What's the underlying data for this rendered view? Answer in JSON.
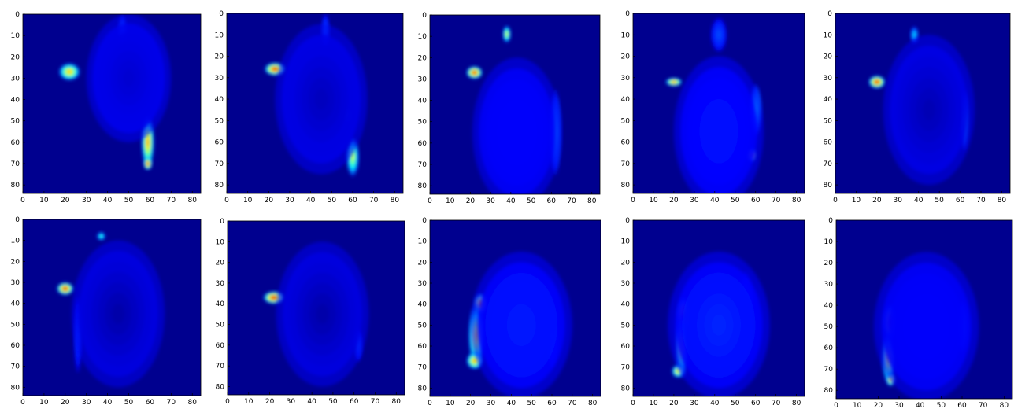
{
  "figure": {
    "colormap": "jet",
    "background": "#00008f",
    "panel_count": 10,
    "rows": 2,
    "cols": 5
  },
  "axes": {
    "x_ticks": [
      "0",
      "10",
      "20",
      "30",
      "40",
      "50",
      "60",
      "70",
      "80"
    ],
    "y_ticks": [
      "0",
      "10",
      "20",
      "30",
      "40",
      "50",
      "60",
      "70",
      "80"
    ],
    "xlim": [
      0,
      84
    ],
    "ylim": [
      84,
      0
    ]
  },
  "panels": [
    {
      "id": "p1",
      "blobs": [
        {
          "x": 22,
          "y": 27,
          "rx": 5,
          "ry": 4,
          "v": 0.72
        },
        {
          "x": 59,
          "y": 60,
          "rx": 3,
          "ry": 12,
          "v": 0.75
        },
        {
          "x": 59,
          "y": 70,
          "rx": 2,
          "ry": 3,
          "v": 0.9
        },
        {
          "x": 47,
          "y": 8,
          "rx": 2,
          "ry": 8,
          "v": 0.25
        },
        {
          "x": 50,
          "y": 30,
          "rx": 20,
          "ry": 30,
          "v": 0.08
        }
      ]
    },
    {
      "id": "p2",
      "blobs": [
        {
          "x": 23,
          "y": 26,
          "rx": 5,
          "ry": 3,
          "v": 0.92
        },
        {
          "x": 57,
          "y": 47,
          "rx": 2,
          "ry": 4,
          "v": 0.55
        },
        {
          "x": 60,
          "y": 67,
          "rx": 3,
          "ry": 9,
          "v": 0.6
        },
        {
          "x": 47,
          "y": 8,
          "rx": 2,
          "ry": 8,
          "v": 0.2
        },
        {
          "x": 45,
          "y": 40,
          "rx": 22,
          "ry": 35,
          "v": 0.06
        }
      ]
    },
    {
      "id": "p3",
      "blobs": [
        {
          "x": 22,
          "y": 27,
          "rx": 4,
          "ry": 3,
          "v": 0.9
        },
        {
          "x": 38,
          "y": 9,
          "rx": 2,
          "ry": 4,
          "v": 0.62
        },
        {
          "x": 62,
          "y": 55,
          "rx": 3,
          "ry": 20,
          "v": 0.28
        },
        {
          "x": 43,
          "y": 55,
          "rx": 22,
          "ry": 35,
          "v": 0.12
        }
      ]
    },
    {
      "id": "p4",
      "blobs": [
        {
          "x": 20,
          "y": 32,
          "rx": 4,
          "ry": 2,
          "v": 0.8
        },
        {
          "x": 58,
          "y": 66,
          "rx": 2,
          "ry": 3,
          "v": 0.92
        },
        {
          "x": 60,
          "y": 45,
          "rx": 3,
          "ry": 12,
          "v": 0.35
        },
        {
          "x": 42,
          "y": 10,
          "rx": 4,
          "ry": 8,
          "v": 0.2
        },
        {
          "x": 42,
          "y": 55,
          "rx": 22,
          "ry": 35,
          "v": 0.14
        }
      ]
    },
    {
      "id": "p5",
      "blobs": [
        {
          "x": 20,
          "y": 32,
          "rx": 4,
          "ry": 3,
          "v": 0.92
        },
        {
          "x": 38,
          "y": 10,
          "rx": 2,
          "ry": 4,
          "v": 0.35
        },
        {
          "x": 62,
          "y": 50,
          "rx": 2,
          "ry": 14,
          "v": 0.35
        },
        {
          "x": 54,
          "y": 52,
          "rx": 2,
          "ry": 6,
          "v": 0.3
        },
        {
          "x": 45,
          "y": 45,
          "rx": 22,
          "ry": 35,
          "v": 0.05
        }
      ]
    },
    {
      "id": "p6",
      "blobs": [
        {
          "x": 20,
          "y": 33,
          "rx": 4,
          "ry": 3,
          "v": 0.93
        },
        {
          "x": 37,
          "y": 8,
          "rx": 2,
          "ry": 2,
          "v": 0.45
        },
        {
          "x": 56,
          "y": 50,
          "rx": 2,
          "ry": 6,
          "v": 0.4
        },
        {
          "x": 26,
          "y": 55,
          "rx": 2,
          "ry": 18,
          "v": 0.18
        },
        {
          "x": 45,
          "y": 45,
          "rx": 22,
          "ry": 35,
          "v": 0.04
        }
      ]
    },
    {
      "id": "p7",
      "blobs": [
        {
          "x": 22,
          "y": 37,
          "rx": 5,
          "ry": 3,
          "v": 0.95
        },
        {
          "x": 55,
          "y": 50,
          "rx": 2,
          "ry": 3,
          "v": 0.3
        },
        {
          "x": 62,
          "y": 60,
          "rx": 2,
          "ry": 8,
          "v": 0.2
        },
        {
          "x": 45,
          "y": 45,
          "rx": 22,
          "ry": 35,
          "v": 0.04
        }
      ]
    },
    {
      "id": "p8",
      "blobs": [
        {
          "x": 25,
          "y": 40,
          "rx": 3,
          "ry": 5,
          "v": 0.92
        },
        {
          "x": 23,
          "y": 55,
          "rx": 4,
          "ry": 15,
          "v": 0.7
        },
        {
          "x": 22,
          "y": 67,
          "rx": 4,
          "ry": 4,
          "v": 0.75
        },
        {
          "x": 60,
          "y": 55,
          "rx": 3,
          "ry": 15,
          "v": 0.25
        },
        {
          "x": 45,
          "y": 50,
          "rx": 25,
          "ry": 35,
          "v": 0.15
        }
      ]
    },
    {
      "id": "p9",
      "blobs": [
        {
          "x": 25,
          "y": 45,
          "rx": 3,
          "ry": 8,
          "v": 0.95
        },
        {
          "x": 24,
          "y": 60,
          "rx": 3,
          "ry": 15,
          "v": 0.65
        },
        {
          "x": 22,
          "y": 72,
          "rx": 3,
          "ry": 3,
          "v": 0.7
        },
        {
          "x": 55,
          "y": 45,
          "rx": 4,
          "ry": 20,
          "v": 0.22
        },
        {
          "x": 42,
          "y": 50,
          "rx": 25,
          "ry": 35,
          "v": 0.16
        }
      ]
    },
    {
      "id": "p10",
      "blobs": [
        {
          "x": 26,
          "y": 48,
          "rx": 3,
          "ry": 8,
          "v": 0.9
        },
        {
          "x": 25,
          "y": 65,
          "rx": 3,
          "ry": 12,
          "v": 0.7
        },
        {
          "x": 26,
          "y": 75,
          "rx": 2,
          "ry": 3,
          "v": 0.75
        },
        {
          "x": 60,
          "y": 50,
          "rx": 3,
          "ry": 12,
          "v": 0.28
        },
        {
          "x": 43,
          "y": 50,
          "rx": 25,
          "ry": 35,
          "v": 0.12
        }
      ]
    }
  ]
}
